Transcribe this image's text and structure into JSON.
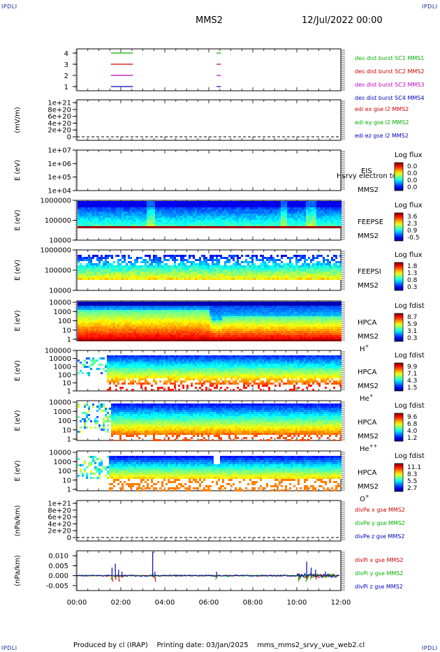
{
  "header": {
    "corner_tl": "IPDLI",
    "corner_tr": "IPDLI",
    "corner_bl": "IPDLI",
    "corner_br": "IPDLI",
    "spacecraft": "MMS2",
    "date": "12/Jul/2022 00:00"
  },
  "footer": {
    "produced": "Produced by cl (IRAP)",
    "printing": "Printing date: 03/Jan/2025",
    "file": "mms_mms2_srvy_vue_web2.cl"
  },
  "colors": {
    "red": "#d00000",
    "green": "#00b000",
    "magenta": "#c000c0",
    "blue": "#0000c0"
  },
  "chart_data": [
    {
      "id": "burst",
      "type": "line",
      "yticks": [
        "1",
        "2",
        "3",
        "4"
      ],
      "series": [
        {
          "name": "des dist burst SC1 MMS1",
          "level": 4,
          "color": "#00b000",
          "segments": [
            [
              1.55,
              2.55
            ],
            [
              6.35,
              6.55
            ]
          ]
        },
        {
          "name": "des dist burst SC2 MMS2",
          "level": 3,
          "color": "#d00000",
          "segments": [
            [
              1.55,
              2.55
            ],
            [
              6.35,
              6.55
            ]
          ]
        },
        {
          "name": "des dist burst SC3 MMS3",
          "level": 2,
          "color": "#c000c0",
          "segments": [
            [
              1.55,
              2.55
            ],
            [
              6.35,
              6.55
            ]
          ]
        },
        {
          "name": "des dist burst SC4 MMS4",
          "level": 1,
          "color": "#0000c0",
          "segments": [
            [
              1.55,
              2.55
            ],
            [
              6.35,
              6.55
            ]
          ]
        }
      ]
    },
    {
      "id": "edi",
      "type": "line",
      "ylabel": "(mV/m)",
      "yticks": [
        "1e+21",
        "8e+20",
        "6e+20",
        "4e+20",
        "2e+20",
        "0"
      ],
      "legend": [
        {
          "name": "edi ex gse l2 MMS2",
          "color": "#d00000"
        },
        {
          "name": "edi ey gse l2 MMS2",
          "color": "#00b000"
        },
        {
          "name": "edi ez gse l2 MMS2",
          "color": "#0000c0"
        }
      ]
    },
    {
      "id": "eis",
      "type": "heatmap",
      "ylabel": "E (eV)",
      "yticks": [
        "1e+07",
        "1e+06",
        "1e+05",
        "1e+04"
      ],
      "instrument": "EIS",
      "subtitle": "Hsrvy electron to",
      "spacecraft": "MMS2",
      "cbar_title": "Log flux",
      "cbar_ticks": [
        "0.0",
        "0.0",
        "0.0",
        "0.0"
      ],
      "empty": true
    },
    {
      "id": "feepse",
      "type": "heatmap",
      "ylabel": "E (eV)",
      "yticks": [
        "1000000",
        "100000",
        "10000"
      ],
      "instrument": "FEEPSE",
      "spacecraft": "MMS2",
      "cbar_title": "Log flux",
      "cbar_ticks": [
        "3.6",
        "2.3",
        "0.9",
        "-0.5"
      ]
    },
    {
      "id": "feepsi",
      "type": "heatmap",
      "ylabel": "E (eV)",
      "yticks": [
        "1000000",
        "100000",
        "10000"
      ],
      "instrument": "FEEPSI",
      "spacecraft": "MMS2",
      "cbar_title": "Log flux",
      "cbar_ticks": [
        "1.8",
        "1.3",
        "0.8",
        "0.3"
      ]
    },
    {
      "id": "hpca_h",
      "type": "heatmap",
      "ylabel": "E (eV)",
      "yticks": [
        "10000",
        "1000",
        "100",
        "10",
        "1"
      ],
      "instrument": "HPCA",
      "spacecraft": "MMS2",
      "species": "H",
      "species_sup": "+",
      "cbar_title": "Log fdist",
      "cbar_ticks": [
        "8.7",
        "5.9",
        "3.1",
        "0.3"
      ]
    },
    {
      "id": "hpca_he",
      "type": "heatmap",
      "ylabel": "E (eV)",
      "yticks": [
        "100000",
        "10000",
        "1000",
        "100",
        "10",
        "1"
      ],
      "instrument": "HPCA",
      "spacecraft": "MMS2",
      "species": "He",
      "species_sup": "+",
      "cbar_title": "Log fdist",
      "cbar_ticks": [
        "9.9",
        "7.1",
        "4.3",
        "1.5"
      ]
    },
    {
      "id": "hpca_hepp",
      "type": "heatmap",
      "ylabel": "E (eV)",
      "yticks": [
        "10000",
        "1000",
        "100",
        "10",
        "1"
      ],
      "instrument": "HPCA",
      "spacecraft": "MMS2",
      "species": "He",
      "species_sup": "++",
      "cbar_title": "Log fdist",
      "cbar_ticks": [
        "9.6",
        "6.8",
        "4.0",
        "1.2"
      ]
    },
    {
      "id": "hpca_o",
      "type": "heatmap",
      "ylabel": "E (eV)",
      "yticks": [
        "10000",
        "1000",
        "100",
        "10",
        "1"
      ],
      "instrument": "HPCA",
      "spacecraft": "MMS2",
      "species": "O",
      "species_sup": "+",
      "cbar_title": "Log fdist",
      "cbar_ticks": [
        "11.1",
        "8.3",
        "5.5",
        "2.7"
      ]
    },
    {
      "id": "divpe",
      "type": "line",
      "ylabel": "(nPa/km)",
      "yticks": [
        "1e+21",
        "8e+20",
        "6e+20",
        "4e+20",
        "2e+20",
        "0"
      ],
      "legend": [
        {
          "name": "divPe x gse MMS2",
          "color": "#d00000"
        },
        {
          "name": "divPe y gse MMS2",
          "color": "#00b000"
        },
        {
          "name": "divPe z gse MMS2",
          "color": "#0000c0"
        }
      ]
    },
    {
      "id": "divpi",
      "type": "line",
      "ylabel": "(nPa/km)",
      "yticks": [
        "0.010",
        "0.005",
        "0.000",
        "-0.005"
      ],
      "ylim": [
        -0.0075,
        0.0125
      ],
      "legend": [
        {
          "name": "divPi x gse MMS2",
          "color": "#d00000"
        },
        {
          "name": "divPi y gse MMS2",
          "color": "#00b000"
        },
        {
          "name": "divPi z gse MMS2",
          "color": "#0000c0"
        }
      ],
      "spikes": [
        {
          "t": 1.6,
          "blue": 0.004,
          "red": -0.003,
          "green": -0.002
        },
        {
          "t": 1.75,
          "blue": 0.006,
          "red": -0.002,
          "green": -0.001
        },
        {
          "t": 1.9,
          "blue": 0.003,
          "red": -0.003,
          "green": 0.001
        },
        {
          "t": 2.05,
          "blue": 0.002,
          "red": -0.001,
          "green": -0.001
        },
        {
          "t": 3.45,
          "blue": 0.012,
          "red": -0.001,
          "green": 0.001
        },
        {
          "t": 3.55,
          "blue": 0.002,
          "red": -0.003,
          "green": -0.001
        },
        {
          "t": 6.35,
          "blue": 0.002,
          "red": -0.001,
          "green": -0.002
        },
        {
          "t": 10.1,
          "blue": 0.001,
          "red": -0.002,
          "green": -0.003
        },
        {
          "t": 10.45,
          "blue": 0.007,
          "red": -0.002,
          "green": -0.003
        },
        {
          "t": 10.65,
          "blue": 0.004,
          "red": -0.001,
          "green": -0.002
        },
        {
          "t": 10.85,
          "blue": 0.003,
          "red": -0.002,
          "green": 0.001
        },
        {
          "t": 11.3,
          "blue": 0.002,
          "red": -0.001,
          "green": -0.001
        }
      ]
    }
  ],
  "xaxis": {
    "ticks": [
      "00:00",
      "02:00",
      "04:00",
      "06:00",
      "08:00",
      "10:00",
      "12:00"
    ],
    "range_hours": [
      0,
      12
    ]
  }
}
